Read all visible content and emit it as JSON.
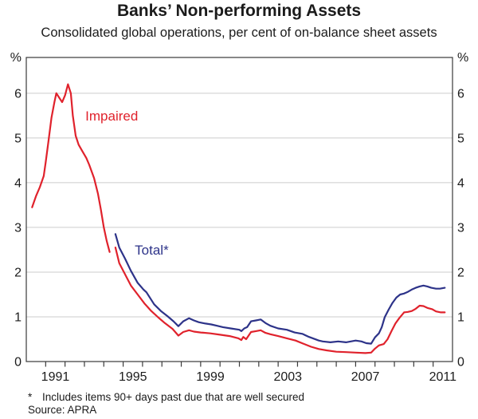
{
  "header": {
    "title": "Banks’ Non-performing Assets",
    "subtitle": "Consolidated global operations, per cent of on-balance sheet assets"
  },
  "chart_data": {
    "type": "line",
    "title": "Banks’ Non-performing Assets",
    "subtitle": "Consolidated global operations, per cent of on-balance sheet assets",
    "legend_position": "inline-annotations",
    "axes": {
      "x": {
        "min": 1990,
        "max": 2012,
        "tick_interval_years": 1,
        "label_years": [
          1991,
          1995,
          1999,
          2003,
          2007,
          2011
        ]
      },
      "y": {
        "min": 0,
        "max": 6.8,
        "ticks": [
          0,
          1,
          2,
          3,
          4,
          5,
          6
        ],
        "unit": "%",
        "sides": "both",
        "grid": true
      }
    },
    "colors": {
      "impaired": "#e0222c",
      "total": "#2d3389",
      "grid": "#cccccc",
      "frame": "#3a3a3a",
      "text": "#1b1b1b"
    },
    "series": [
      {
        "name": "Impaired",
        "color": "#e0222c",
        "segments": [
          {
            "x": [
              1990.3,
              1990.5,
              1990.7,
              1990.9,
              1991.0,
              1991.15,
              1991.3,
              1991.45,
              1991.55,
              1991.7,
              1991.85,
              1992.0,
              1992.15,
              1992.3,
              1992.4,
              1992.55,
              1992.7,
              1992.9,
              1993.1,
              1993.25,
              1993.5,
              1993.7,
              1993.85,
              1994.0,
              1994.15,
              1994.3
            ],
            "y": [
              3.45,
              3.7,
              3.9,
              4.15,
              4.45,
              4.95,
              5.45,
              5.8,
              6.0,
              5.9,
              5.8,
              5.95,
              6.2,
              6.0,
              5.5,
              5.05,
              4.85,
              4.7,
              4.55,
              4.4,
              4.1,
              3.75,
              3.4,
              3.0,
              2.7,
              2.45
            ]
          },
          {
            "x": [
              1994.6,
              1994.8,
              1995.1,
              1995.4,
              1995.75,
              1996.1,
              1996.45,
              1996.8,
              1997.15,
              1997.55,
              1997.85,
              1998.1,
              1998.4,
              1998.65,
              1999.0,
              1999.5,
              2000.0,
              2000.5,
              2000.95,
              2001.1,
              2001.2,
              2001.35,
              2001.6,
              2001.85,
              2002.1,
              2002.35,
              2002.6,
              2003.0,
              2003.45,
              2003.9,
              2004.3,
              2004.7,
              2005.1,
              2005.5,
              2006.0,
              2006.5,
              2007.0,
              2007.5,
              2007.8,
              2008.0,
              2008.2,
              2008.45,
              2008.65,
              2008.85,
              2009.05,
              2009.25,
              2009.5,
              2009.7,
              2009.9,
              2010.1,
              2010.3,
              2010.5,
              2010.7,
              2010.95,
              2011.15,
              2011.4,
              2011.6
            ],
            "y": [
              2.55,
              2.2,
              1.95,
              1.7,
              1.5,
              1.3,
              1.13,
              0.99,
              0.86,
              0.73,
              0.58,
              0.66,
              0.7,
              0.67,
              0.65,
              0.63,
              0.6,
              0.57,
              0.52,
              0.48,
              0.55,
              0.5,
              0.66,
              0.68,
              0.7,
              0.64,
              0.61,
              0.57,
              0.52,
              0.47,
              0.4,
              0.33,
              0.28,
              0.25,
              0.22,
              0.21,
              0.2,
              0.19,
              0.2,
              0.29,
              0.36,
              0.39,
              0.5,
              0.68,
              0.85,
              0.97,
              1.1,
              1.11,
              1.13,
              1.18,
              1.25,
              1.24,
              1.2,
              1.17,
              1.12,
              1.1,
              1.1
            ]
          }
        ]
      },
      {
        "name": "Total*",
        "color": "#2d3389",
        "segments": [
          {
            "x": [
              1994.6,
              1994.8,
              1995.1,
              1995.4,
              1995.75,
              1996.05,
              1996.2,
              1996.6,
              1996.95,
              1997.3,
              1997.6,
              1997.85,
              1998.1,
              1998.4,
              1998.65,
              1998.9,
              1999.25,
              1999.55,
              1999.85,
              2000.15,
              2000.55,
              2001.0,
              2001.1,
              2001.25,
              2001.4,
              2001.6,
              2001.85,
              2002.1,
              2002.35,
              2002.6,
              2003.0,
              2003.45,
              2003.85,
              2004.25,
              2004.6,
              2005.1,
              2005.3,
              2005.7,
              2006.1,
              2006.5,
              2007.0,
              2007.3,
              2007.55,
              2007.8,
              2008.0,
              2008.2,
              2008.35,
              2008.5,
              2008.7,
              2008.9,
              2009.1,
              2009.3,
              2009.5,
              2009.7,
              2009.9,
              2010.1,
              2010.3,
              2010.5,
              2010.7,
              2010.9,
              2011.15,
              2011.35,
              2011.6
            ],
            "y": [
              2.85,
              2.55,
              2.3,
              2.03,
              1.76,
              1.61,
              1.55,
              1.28,
              1.13,
              1.01,
              0.9,
              0.79,
              0.9,
              0.97,
              0.92,
              0.88,
              0.85,
              0.83,
              0.8,
              0.77,
              0.74,
              0.71,
              0.68,
              0.74,
              0.77,
              0.9,
              0.92,
              0.94,
              0.86,
              0.8,
              0.74,
              0.71,
              0.65,
              0.62,
              0.55,
              0.47,
              0.45,
              0.43,
              0.45,
              0.43,
              0.47,
              0.45,
              0.41,
              0.4,
              0.54,
              0.63,
              0.77,
              0.99,
              1.16,
              1.31,
              1.43,
              1.5,
              1.52,
              1.56,
              1.61,
              1.65,
              1.68,
              1.7,
              1.68,
              1.65,
              1.63,
              1.63,
              1.65
            ]
          }
        ]
      }
    ],
    "annotations": [
      {
        "text": "Impaired",
        "x": 1993.05,
        "y": 5.5,
        "color": "#e0222c"
      },
      {
        "text": "Total*",
        "x": 1995.6,
        "y": 2.5,
        "color": "#2d3389"
      }
    ]
  },
  "footnote": {
    "marker": "*",
    "text": "Includes items 90+ days past due that are well secured",
    "source": "Source: APRA"
  }
}
